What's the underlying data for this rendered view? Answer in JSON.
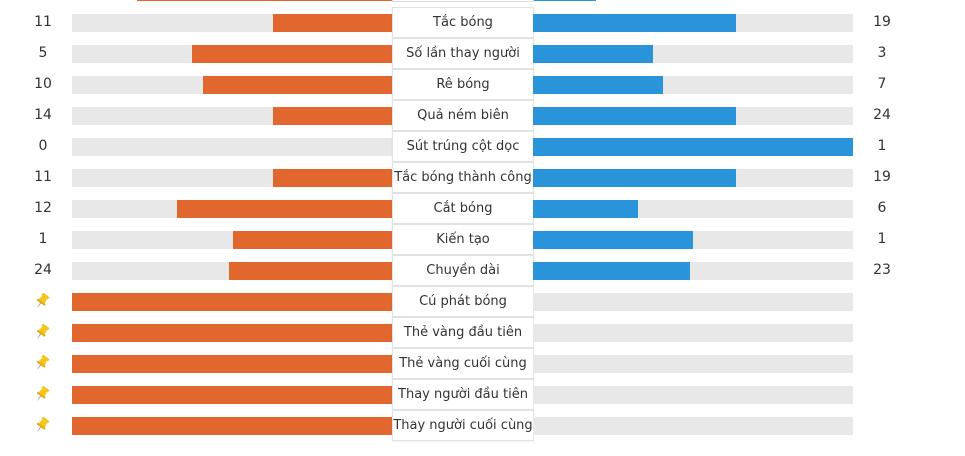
{
  "stats": [
    {
      "label": "Tắc bóng",
      "left": "11",
      "right": "19",
      "left_pct": 37.5,
      "right_pct": 63.4
    },
    {
      "label": "Số lần thay người",
      "left": "5",
      "right": "3",
      "left_pct": 62.5,
      "right_pct": 37.5
    },
    {
      "label": "Rê bóng",
      "left": "10",
      "right": "7",
      "left_pct": 59.3,
      "right_pct": 40.6
    },
    {
      "label": "Quả ném biên",
      "left": "14",
      "right": "24",
      "left_pct": 37.5,
      "right_pct": 63.4
    },
    {
      "label": "Sút trúng cột dọc",
      "left": "0",
      "right": "1",
      "left_pct": 0,
      "right_pct": 100
    },
    {
      "label": "Tắc bóng thành công",
      "left": "11",
      "right": "19",
      "left_pct": 37.5,
      "right_pct": 63.4
    },
    {
      "label": "Cắt bóng",
      "left": "12",
      "right": "6",
      "left_pct": 67.3,
      "right_pct": 32.8
    },
    {
      "label": "Kiến tạo",
      "left": "1",
      "right": "1",
      "left_pct": 50,
      "right_pct": 50
    },
    {
      "label": "Chuyền dài",
      "left": "24",
      "right": "23",
      "left_pct": 51.1,
      "right_pct": 49.1
    }
  ],
  "events": [
    {
      "label": "Cú phát bóng",
      "icon": "pin-icon",
      "side": "left"
    },
    {
      "label": "Thẻ vàng đầu tiên",
      "icon": "pin-icon",
      "side": "left"
    },
    {
      "label": "Thẻ vàng cuối cùng",
      "icon": "pin-icon",
      "side": "left"
    },
    {
      "label": "Thay người đầu tiên",
      "icon": "pin-icon",
      "side": "left"
    },
    {
      "label": "Thay người cuối cùng",
      "icon": "pin-icon",
      "side": "left"
    }
  ],
  "colors": {
    "home": "#e2672f",
    "away": "#2a94db",
    "track": "#e8e8e8",
    "pin": "#f5c518"
  }
}
